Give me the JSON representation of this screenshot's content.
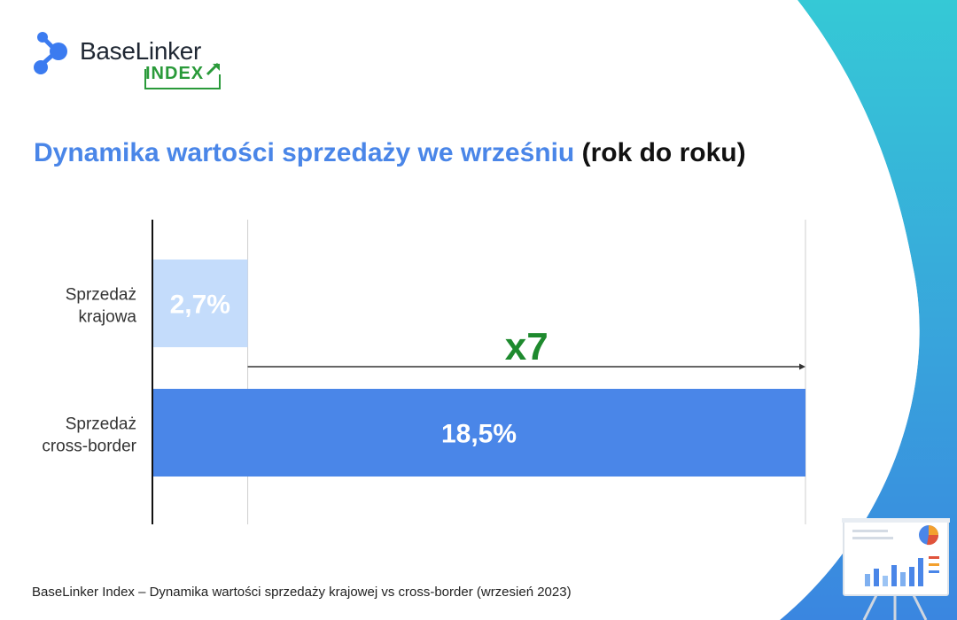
{
  "brand": {
    "name": "BaseLinker",
    "index_label": "INDEX"
  },
  "title": {
    "main": "Dynamika wartości sprzedaży we wrześniu",
    "suffix": "(rok do roku)"
  },
  "chart_data": {
    "type": "bar",
    "orientation": "horizontal",
    "categories": [
      [
        "Sprzedaż",
        "krajowa"
      ],
      [
        "Sprzedaż",
        "cross-border"
      ]
    ],
    "values": [
      2.7,
      18.5
    ],
    "value_labels": [
      "2,7%",
      "18,5%"
    ],
    "xlim": [
      0,
      18.5
    ],
    "annotation": {
      "label": "x7",
      "from": 2.7,
      "to": 18.5
    },
    "colors": [
      "#c4dcfb",
      "#4a86e8"
    ],
    "annotation_color": "#1e8a2e"
  },
  "footer": "BaseLinker Index – Dynamika wartości sprzedaży krajowej vs cross-border (wrzesień 2023)",
  "colors": {
    "accent": "#4a86e8",
    "brand_green": "#2a9a3a",
    "teal": "#35c4d8"
  }
}
